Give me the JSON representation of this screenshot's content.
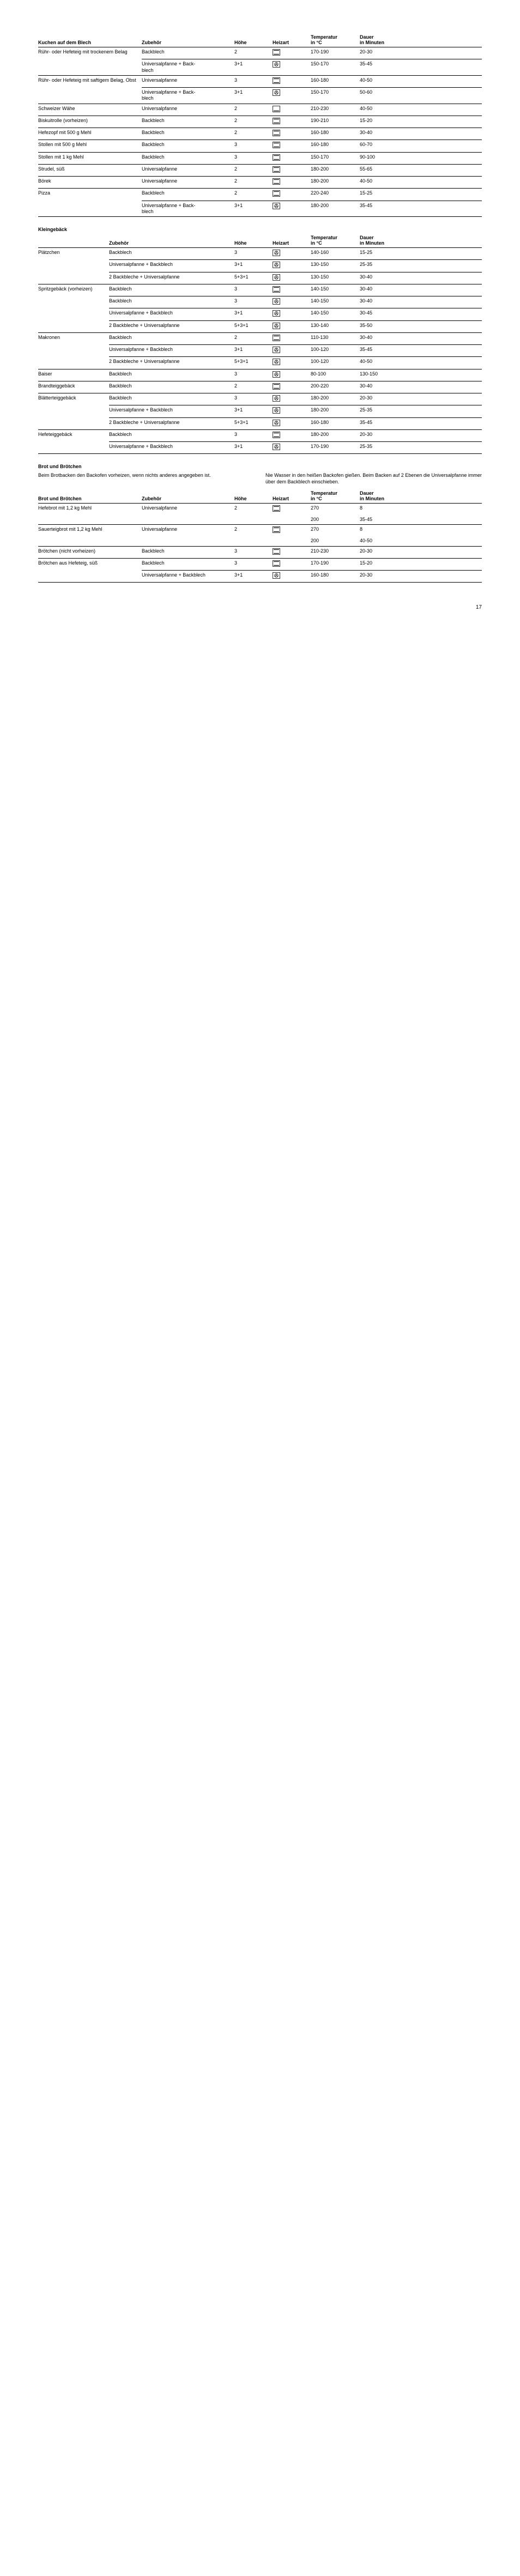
{
  "pageNumber": "17",
  "icons": {
    "top_bottom": "<svg width='14' height='12' viewBox='0 0 14 12'><rect x='0.5' y='0.5' width='13' height='11' fill='none' stroke='#000' stroke-width='0.8'/><line x1='2' y1='2.5' x2='12' y2='2.5' stroke='#000' stroke-width='1.2'/><line x1='2' y1='9.5' x2='12' y2='9.5' stroke='#000' stroke-width='1.2'/></svg>",
    "fan": "<svg width='14' height='12' viewBox='0 0 14 12'><rect x='0.5' y='0.5' width='13' height='11' fill='none' stroke='#000' stroke-width='0.8'/><circle cx='7' cy='6' r='3.2' fill='none' stroke='#000' stroke-width='0.8'/><path d='M7 6 L7 2.8 M7 6 L9.7 7.6 M7 6 L4.3 7.6' stroke='#000' stroke-width='0.8'/></svg>",
    "bottom": "<svg width='14' height='12' viewBox='0 0 14 12'><rect x='0.5' y='0.5' width='13' height='11' fill='none' stroke='#000' stroke-width='0.8'/><line x1='2' y1='9.5' x2='12' y2='9.5' stroke='#000' stroke-width='1.2'/></svg>",
    "pizza": "<svg width='14' height='12' viewBox='0 0 14 12'><rect x='0.5' y='0.5' width='13' height='11' fill='none' stroke='#000' stroke-width='0.8'/><circle cx='7' cy='5' r='2.3' fill='none' stroke='#000' stroke-width='0.8'/><path d='M7 5 L7 2.7 M7 5 L9 6.2 M7 5 L5 6.2' stroke='#000' stroke-width='0.7'/><line x1='2' y1='9.5' x2='12' y2='9.5' stroke='#000' stroke-width='1.2'/></svg>"
  },
  "table1": {
    "title": "Kuchen auf dem Blech",
    "headers": [
      "",
      "Zubehör",
      "Höhe",
      "Heizart",
      "Temperatur\nin °C",
      "Dauer\nin Minuten"
    ],
    "rows": [
      {
        "item": "Rühr- oder Hefeteig mit trockenem Belag",
        "rowspan": 2,
        "acc": "Backblech",
        "h": "2",
        "heiz": "top_bottom",
        "temp": "170-190",
        "dauer": "20-30"
      },
      {
        "acc": "Universalpfanne + Back-\nblech",
        "h": "3+1",
        "heiz": "fan",
        "temp": "150-170",
        "dauer": "35-45"
      },
      {
        "item": "Rühr- oder Hefeteig mit saftigem Belag, Obst",
        "rowspan": 2,
        "acc": "Universalpfanne",
        "h": "3",
        "heiz": "top_bottom",
        "temp": "160-180",
        "dauer": "40-50"
      },
      {
        "acc": "Universalpfanne + Back-\nblech",
        "h": "3+1",
        "heiz": "fan",
        "temp": "150-170",
        "dauer": "50-60"
      },
      {
        "item": "Schweizer Wähe",
        "acc": "Universalpfanne",
        "h": "2",
        "heiz": "bottom",
        "temp": "210-230",
        "dauer": "40-50"
      },
      {
        "item": "Biskuitrolle (vorheizen)",
        "acc": "Backblech",
        "h": "2",
        "heiz": "top_bottom",
        "temp": "190-210",
        "dauer": "15-20"
      },
      {
        "item": "Hefezopf mit 500 g Mehl",
        "acc": "Backblech",
        "h": "2",
        "heiz": "top_bottom",
        "temp": "160-180",
        "dauer": "30-40"
      },
      {
        "item": "Stollen mit 500 g Mehl",
        "acc": "Backblech",
        "h": "3",
        "heiz": "top_bottom",
        "temp": "160-180",
        "dauer": "60-70"
      },
      {
        "item": "Stollen mit 1 kg Mehl",
        "acc": "Backblech",
        "h": "3",
        "heiz": "top_bottom",
        "temp": "150-170",
        "dauer": "90-100"
      },
      {
        "item": "Strudel, süß",
        "acc": "Universalpfanne",
        "h": "2",
        "heiz": "top_bottom",
        "temp": "180-200",
        "dauer": "55-65"
      },
      {
        "item": "Börek",
        "acc": "Universalpfanne",
        "h": "2",
        "heiz": "top_bottom",
        "temp": "180-200",
        "dauer": "40-50"
      },
      {
        "item": "Pizza",
        "rowspan": 2,
        "acc": "Backblech",
        "h": "2",
        "heiz": "top_bottom",
        "temp": "220-240",
        "dauer": "15-25"
      },
      {
        "acc": "Universalpfanne + Back-\nblech",
        "h": "3+1",
        "heiz": "fan",
        "temp": "180-200",
        "dauer": "35-45"
      }
    ]
  },
  "table2": {
    "title": "Kleingebäck",
    "headers": [
      "",
      "Zubehör",
      "Höhe",
      "Heizart",
      "Temperatur\nin °C",
      "Dauer\nin Minuten"
    ],
    "rows": [
      {
        "item": "Plätzchen",
        "rowspan": 3,
        "acc": "Backblech",
        "h": "3",
        "heiz": "fan",
        "temp": "140-160",
        "dauer": "15-25"
      },
      {
        "acc": "Universalpfanne + Backblech",
        "h": "3+1",
        "heiz": "fan",
        "temp": "130-150",
        "dauer": "25-35"
      },
      {
        "acc": "2 Backbleche + Universalpfanne",
        "h": "5+3+1",
        "heiz": "fan",
        "temp": "130-150",
        "dauer": "30-40"
      },
      {
        "item": "Spritzgebäck (vorheizen)",
        "rowspan": 4,
        "acc": "Backblech",
        "h": "3",
        "heiz": "top_bottom",
        "temp": "140-150",
        "dauer": "30-40"
      },
      {
        "acc": "Backblech",
        "h": "3",
        "heiz": "fan",
        "temp": "140-150",
        "dauer": "30-40"
      },
      {
        "acc": "Universalpfanne + Backblech",
        "h": "3+1",
        "heiz": "fan",
        "temp": "140-150",
        "dauer": "30-45"
      },
      {
        "acc": "2 Backbleche + Universalpfanne",
        "h": "5+3+1",
        "heiz": "fan",
        "temp": "130-140",
        "dauer": "35-50"
      },
      {
        "item": "Makronen",
        "rowspan": 3,
        "acc": "Backblech",
        "h": "2",
        "heiz": "top_bottom",
        "temp": "110-130",
        "dauer": "30-40"
      },
      {
        "acc": "Universalpfanne + Backblech",
        "h": "3+1",
        "heiz": "fan",
        "temp": "100-120",
        "dauer": "35-45"
      },
      {
        "acc": "2 Backbleche + Universalpfanne",
        "h": "5+3+1",
        "heiz": "fan",
        "temp": "100-120",
        "dauer": "40-50"
      },
      {
        "item": "Baiser",
        "acc": "Backblech",
        "h": "3",
        "heiz": "fan",
        "temp": "80-100",
        "dauer": "130-150"
      },
      {
        "item": "Brandteiggebäck",
        "acc": "Backblech",
        "h": "2",
        "heiz": "top_bottom",
        "temp": "200-220",
        "dauer": "30-40"
      },
      {
        "item": "Blätterteiggebäck",
        "rowspan": 3,
        "acc": "Backblech",
        "h": "3",
        "heiz": "fan",
        "temp": "180-200",
        "dauer": "20-30"
      },
      {
        "acc": "Universalpfanne + Backblech",
        "h": "3+1",
        "heiz": "fan",
        "temp": "180-200",
        "dauer": "25-35"
      },
      {
        "acc": "2 Backbleche + Universalpfanne",
        "h": "5+3+1",
        "heiz": "fan",
        "temp": "160-180",
        "dauer": "35-45"
      },
      {
        "item": "Hefeteiggebäck",
        "rowspan": 2,
        "acc": "Backblech",
        "h": "3",
        "heiz": "top_bottom",
        "temp": "180-200",
        "dauer": "20-30"
      },
      {
        "acc": "Universalpfanne + Backblech",
        "h": "3+1",
        "heiz": "fan",
        "temp": "170-190",
        "dauer": "25-35"
      }
    ]
  },
  "section3": {
    "title": "Brot und Brötchen",
    "introLeft": "Beim Brotbacken den Backofen vorheizen, wenn nichts anderes angegeben ist.",
    "introRight": "Nie Wasser in den heißen Backofen gießen.\nBeim Backen auf 2 Ebenen die Universalpfanne immer über dem Backblech einschieben."
  },
  "table3": {
    "headers": [
      "Brot und Brötchen",
      "Zubehör",
      "Höhe",
      "Heizart",
      "Temperatur\nin °C",
      "Dauer\nin Minuten"
    ],
    "rows": [
      {
        "item": "Hefebrot mit 1,2 kg Mehl",
        "acc": "Universalpfanne",
        "h": "2",
        "heiz": "top_bottom",
        "temp": "270",
        "dauer": "8",
        "extraTemp": "200",
        "extraDauer": "35-45"
      },
      {
        "item": "Sauerteigbrot mit 1,2 kg Mehl",
        "acc": "Universalpfanne",
        "h": "2",
        "heiz": "top_bottom",
        "temp": "270",
        "dauer": "8",
        "extraTemp": "200",
        "extraDauer": "40-50"
      },
      {
        "item": "Brötchen (nicht vorheizen)",
        "acc": "Backblech",
        "h": "3",
        "heiz": "top_bottom",
        "temp": "210-230",
        "dauer": "20-30"
      },
      {
        "item": "Brötchen aus Hefeteig, süß",
        "rowspan": 2,
        "acc": "Backblech",
        "h": "3",
        "heiz": "top_bottom",
        "temp": "170-190",
        "dauer": "15-20"
      },
      {
        "acc": "Universalpfanne + Backblech",
        "h": "3+1",
        "heiz": "fan",
        "temp": "160-180",
        "dauer": "20-30"
      }
    ]
  }
}
